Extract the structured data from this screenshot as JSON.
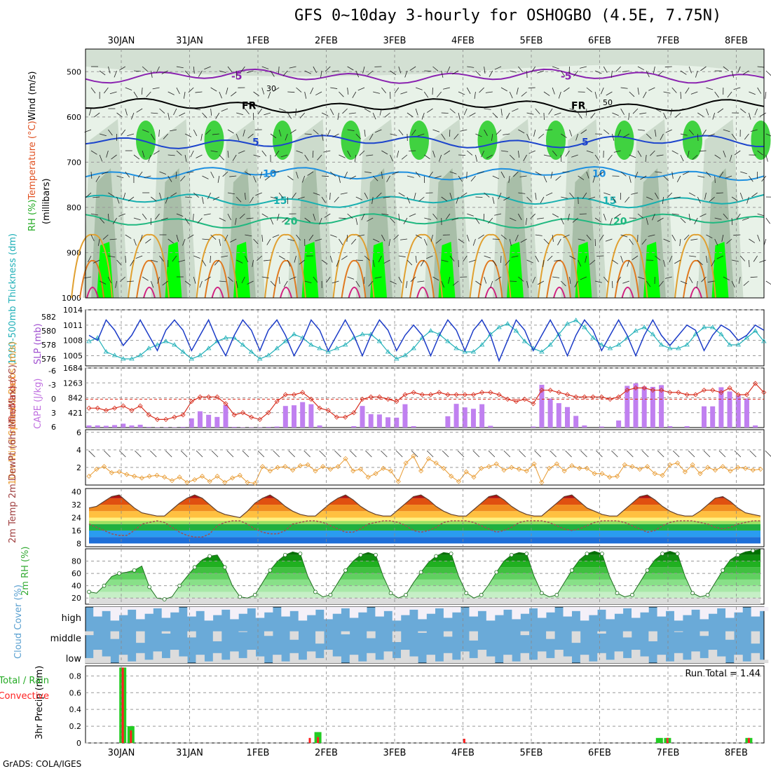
{
  "title": "GFS 0~10day 3-hourly for OSHOGBO (4.5E, 7.75N)",
  "footer": "GrADS: COLA/IGES",
  "dates": [
    "30JAN",
    "31JAN",
    "1FEB",
    "2FEB",
    "3FEB",
    "4FEB",
    "5FEB",
    "6FEB",
    "7FEB",
    "8FEB"
  ],
  "colors": {
    "rh_light": "#e8f2e8",
    "rh_mid": "#c4d4c4",
    "rh_dark": "#9fb79f",
    "rh_green": "#22cc22",
    "rh_bright": "#00ff00",
    "slp": "#1c3cc8",
    "thickness": "#20b0b8",
    "lifted": "#d83020",
    "cape": "#c080f0",
    "wind10": "#e89a30",
    "dewpt": "#a05050",
    "rh2m": "#33aa33",
    "cloud": "#6aaad8",
    "cloud_clear": "#dcdcdc",
    "precip_total": "#22cc22",
    "precip_conv": "#ff2020"
  },
  "chart_data": [
    {
      "type": "heatmap",
      "name": "pressure-level",
      "ylabel_parts": [
        "RH (%)",
        "Temperature (°C)",
        "Wind (m/s)"
      ],
      "ylabel_units": "(millibars)",
      "yticks": [
        500,
        600,
        700,
        800,
        900,
        1000
      ],
      "ylim": [
        1000,
        450
      ],
      "contours": [
        {
          "label": "-5",
          "color": "#8a22b0",
          "level": 510
        },
        {
          "label": "FR",
          "color": "#000000",
          "level": 575
        },
        {
          "label": "5",
          "color": "#1c44cc",
          "level": 655
        },
        {
          "label": "10",
          "color": "#1e90e0",
          "level": 725
        },
        {
          "label": "15",
          "color": "#18b0b0",
          "level": 785
        },
        {
          "label": "20",
          "color": "#20b880",
          "level": 830
        }
      ],
      "rh_labels": [
        "30",
        "50"
      ]
    },
    {
      "type": "line",
      "name": "slp-thickness",
      "ylabel": "SLP (mb)",
      "ylabel2": "1000-500mb Thickness (dm)",
      "left_ticks": [
        576,
        578,
        580,
        582
      ],
      "left_ylim": [
        575,
        583
      ],
      "right_ticks": [
        1005,
        1008,
        1011,
        1014
      ],
      "right_ylim": [
        1003,
        1014
      ],
      "slp": [
        1009,
        1008,
        1012,
        1010,
        1007,
        1009,
        1012,
        1009,
        1006,
        1010,
        1012,
        1010,
        1006,
        1009,
        1012,
        1008,
        1005,
        1009,
        1012,
        1010,
        1006,
        1010,
        1012,
        1009,
        1005,
        1008,
        1012,
        1010,
        1006,
        1009,
        1012,
        1009,
        1005,
        1009,
        1012,
        1010,
        1006,
        1009,
        1011,
        1009,
        1005,
        1009,
        1012,
        1010,
        1006,
        1010,
        1012,
        1009,
        1004,
        1008,
        1012,
        1010,
        1006,
        1009,
        1012,
        1009,
        1005,
        1009,
        1012,
        1010,
        1006,
        1009,
        1012,
        1009,
        1005,
        1009,
        1012,
        1009,
        1007,
        1009,
        1011,
        1010,
        1006,
        1009,
        1011,
        1010,
        1008,
        1009,
        1011,
        1010
      ],
      "thickness": [
        578.5,
        579,
        577,
        576.5,
        576,
        576,
        576.5,
        577.5,
        578,
        578.5,
        578,
        577,
        576,
        576.5,
        577.5,
        578.5,
        579,
        579,
        578,
        577,
        576,
        576.5,
        577.5,
        578.5,
        579.5,
        579,
        578,
        577.5,
        577,
        577.5,
        578,
        579,
        579.5,
        579.5,
        578.5,
        577,
        576,
        576.5,
        577.5,
        579,
        580,
        579.5,
        578.5,
        577.5,
        577,
        577,
        578,
        579.5,
        580.5,
        581,
        580,
        578.5,
        577.5,
        577,
        578,
        579.5,
        581,
        581.5,
        580.5,
        579,
        578,
        577.5,
        578,
        579,
        580,
        580.5,
        579.5,
        578,
        577.5,
        577.5,
        578,
        579.5,
        580.5,
        580.5,
        579.5,
        578,
        578,
        579,
        580,
        578.5
      ]
    },
    {
      "type": "bar",
      "name": "cape-lifted",
      "ylabel": "CAPE (J/kg)",
      "ylabel2": "Lifted Index",
      "left_ticks": [
        "-6",
        "-3",
        "0",
        "3",
        "6"
      ],
      "right_ticks": [
        421,
        842,
        1263,
        1684
      ],
      "ylim": [
        0,
        1684
      ],
      "cape": [
        60,
        60,
        50,
        70,
        110,
        60,
        80,
        20,
        10,
        10,
        10,
        20,
        260,
        460,
        360,
        300,
        640,
        20,
        10,
        10,
        10,
        20,
        30,
        610,
        630,
        720,
        660,
        60,
        0,
        0,
        0,
        40,
        610,
        380,
        370,
        290,
        280,
        660,
        40,
        0,
        0,
        0,
        320,
        670,
        570,
        530,
        660,
        50,
        0,
        0,
        0,
        0,
        30,
        1210,
        820,
        690,
        580,
        330,
        60,
        0,
        30,
        0,
        200,
        1180,
        1250,
        1160,
        1150,
        1200,
        40,
        0,
        40,
        0,
        600,
        600,
        1140,
        1020,
        910,
        820,
        60,
        0
      ],
      "lifted": [
        2,
        2,
        2.5,
        2,
        1.5,
        2.5,
        1.5,
        3.5,
        4.5,
        4.5,
        4,
        3.5,
        0.5,
        -0.5,
        -0.5,
        -0.5,
        1,
        3.5,
        3,
        4,
        4.5,
        3,
        0.5,
        -1,
        -1,
        -1.5,
        0,
        2,
        2.5,
        4,
        4,
        3,
        0,
        -0.5,
        -0.5,
        0,
        0.5,
        -1,
        -1.5,
        -1,
        -1,
        -1.5,
        -1,
        -1,
        -1,
        -1,
        -1.5,
        -1.5,
        -1,
        0,
        0.5,
        0,
        1,
        -2,
        -2,
        -1.5,
        -1,
        -0.5,
        -0.5,
        -0.5,
        -0.5,
        0,
        -0.5,
        -2,
        -2.5,
        -2.5,
        -2,
        -2,
        -1.5,
        -1.5,
        -1,
        -1,
        -2,
        -2,
        -1.5,
        -2.5,
        -1,
        -1,
        -3.5,
        -1.5
      ]
    },
    {
      "type": "line",
      "name": "wind10m",
      "ylabel": "10m Wind Speed & Barbs (m/s)",
      "yticks": [
        2,
        4,
        6
      ],
      "ylim": [
        0,
        6.3
      ],
      "values": [
        1,
        1.8,
        2.1,
        1.4,
        1.5,
        1.2,
        1,
        0.8,
        1,
        1.1,
        0.9,
        0.5,
        0.9,
        0.3,
        0.6,
        1,
        0.4,
        1,
        0.3,
        0.8,
        1.1,
        0.3,
        0.2,
        2.1,
        1.6,
        2,
        2.1,
        1.7,
        2.2,
        2.3,
        1.6,
        2.1,
        1.8,
        2.1,
        3,
        1.6,
        1.8,
        0.9,
        1.3,
        1.9,
        1.6,
        0.4,
        2.5,
        3.3,
        1.6,
        3,
        2.5,
        1.9,
        1,
        0.4,
        1.5,
        0.9,
        1.9,
        2.1,
        2.4,
        1.7,
        2,
        1.8,
        1.6,
        2.4,
        0.3,
        1.9,
        2.4,
        1.6,
        2.2,
        1.9,
        1.9,
        1.3,
        1.3,
        0.9,
        1,
        2.3,
        2.1,
        1.8,
        2.1,
        1.3,
        1.1,
        2.3,
        2.5,
        1.5,
        2.3,
        1.3,
        2,
        1.7,
        2.1,
        1.6,
        2,
        1.9,
        1.7,
        1.8
      ]
    },
    {
      "type": "area",
      "name": "temp-dewpt",
      "ylabel": "2m Temp 2m DewPt (6hr Min/Max) (°C)",
      "yticks": [
        8,
        16,
        24,
        32,
        40
      ],
      "ylim": [
        6,
        42
      ],
      "temp": [
        30,
        31,
        34,
        37,
        38,
        34,
        30,
        27,
        26,
        25,
        25,
        29,
        33,
        36,
        38,
        36,
        32,
        28,
        26,
        25,
        24,
        28,
        33,
        36,
        38,
        35,
        31,
        28,
        26,
        25,
        25,
        29,
        33,
        36,
        38,
        35,
        31,
        28,
        26,
        25,
        25,
        29,
        33,
        37,
        38,
        35,
        31,
        28,
        26,
        25,
        25,
        29,
        33,
        37,
        38,
        35,
        31,
        28,
        26,
        25,
        25,
        29,
        33,
        37,
        38,
        34,
        30,
        28,
        26,
        25,
        25,
        29,
        33,
        37,
        38,
        35,
        31,
        28,
        26,
        25,
        25,
        28,
        32,
        36,
        37,
        34,
        30,
        27,
        26,
        25
      ],
      "dewpt": [
        20,
        18,
        16,
        14,
        13,
        13,
        16,
        20,
        21,
        22,
        21,
        18,
        15,
        13,
        12,
        12,
        14,
        19,
        21,
        22,
        22,
        20,
        17,
        15,
        14,
        14,
        16,
        20,
        21,
        22,
        22,
        21,
        19,
        17,
        15,
        15,
        17,
        20,
        21,
        22,
        22,
        21,
        19,
        16,
        15,
        16,
        18,
        21,
        22,
        22,
        22,
        21,
        19,
        17,
        15,
        16,
        18,
        21,
        22,
        22,
        22,
        21,
        19,
        17,
        16,
        17,
        19,
        21,
        22,
        22,
        22,
        21,
        19,
        17,
        15,
        16,
        19,
        21,
        22,
        22,
        22,
        21,
        20,
        18,
        17,
        18,
        20,
        21,
        22,
        22
      ]
    },
    {
      "type": "area",
      "name": "rh2m",
      "ylabel": "2m RH (%)",
      "yticks": [
        20,
        40,
        60,
        80
      ],
      "ylim": [
        10,
        100
      ],
      "values": [
        30,
        28,
        40,
        55,
        60,
        62,
        65,
        72,
        38,
        20,
        18,
        22,
        40,
        55,
        70,
        82,
        88,
        90,
        70,
        40,
        22,
        20,
        25,
        45,
        65,
        80,
        90,
        95,
        92,
        55,
        30,
        22,
        25,
        45,
        65,
        80,
        90,
        94,
        90,
        55,
        28,
        20,
        25,
        45,
        62,
        78,
        88,
        94,
        92,
        55,
        28,
        20,
        25,
        42,
        62,
        80,
        90,
        94,
        92,
        55,
        28,
        22,
        25,
        45,
        65,
        82,
        92,
        96,
        92,
        55,
        28,
        22,
        25,
        45,
        65,
        82,
        92,
        96,
        92,
        55,
        28,
        22,
        25,
        45,
        65,
        82,
        90,
        95,
        97,
        99
      ]
    },
    {
      "type": "heatmap",
      "name": "cloud-cover",
      "ylabel": "Cloud Cover (%)",
      "rows": [
        "high",
        "middle",
        "low"
      ]
    },
    {
      "type": "bar",
      "name": "precip",
      "ylabel": "3hr Precip (mm)",
      "legend": [
        "Total / Rain",
        "Convective"
      ],
      "run_total": "Run Total = 1.44",
      "yticks": [
        "0",
        "0.2",
        "0.4",
        "0.6",
        "0.8"
      ],
      "ylim": [
        0,
        0.92
      ],
      "total": {
        "2": 0.9,
        "3": 0.2,
        "26": 0.13,
        "68": 0.06,
        "69": 0.06,
        "79": 0.06
      },
      "convective": {
        "2": 0.9,
        "3": 0.15,
        "25": 0.06,
        "26": 0.07,
        "44": 0.05,
        "69": 0.06,
        "79": 0.06
      }
    }
  ]
}
